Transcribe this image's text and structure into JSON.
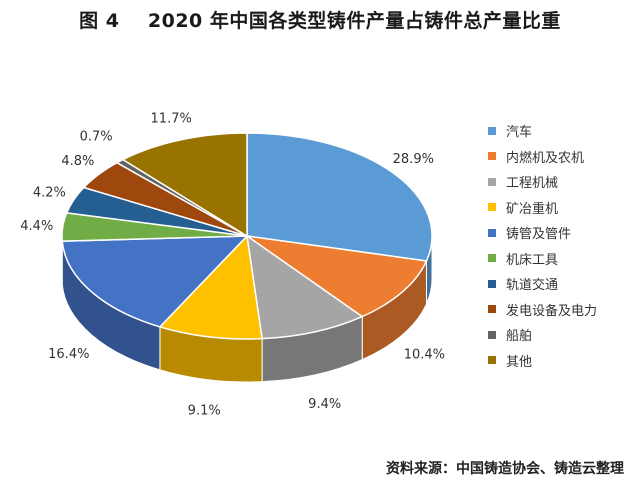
{
  "chart_data": {
    "type": "pie",
    "title": "图 4    2020 年中国各类型铸件产量占铸件总产量比重",
    "categories": [
      "汽车",
      "内燃机及农机",
      "工程机械",
      "矿冶重机",
      "铸管及管件",
      "机床工具",
      "轨道交通",
      "发电设备及电力",
      "船舶",
      "其他"
    ],
    "values": [
      28.9,
      10.4,
      9.4,
      9.1,
      16.4,
      4.4,
      4.2,
      4.8,
      0.7,
      11.7
    ],
    "data_labels": [
      "28.9%",
      "10.4%",
      "9.4%",
      "9.1%",
      "16.4%",
      "4.4%",
      "4.2%",
      "4.8%",
      "0.7%",
      "11.7%"
    ],
    "colors": [
      "#5b9bd5",
      "#ed7d31",
      "#a5a5a5",
      "#ffc000",
      "#4472c4",
      "#70ad47",
      "#255e91",
      "#9e480e",
      "#636363",
      "#997300"
    ],
    "style": "3d-pie",
    "legend_position": "right"
  },
  "source_note": "资料来源：中国铸造协会、铸造云整理"
}
